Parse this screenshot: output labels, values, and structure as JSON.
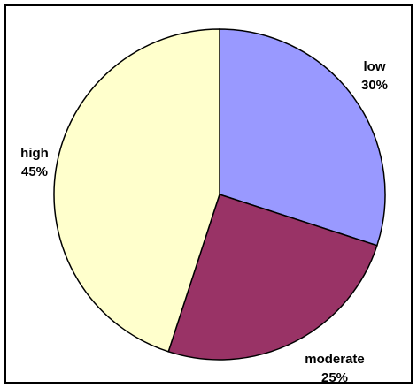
{
  "chart_data": {
    "type": "pie",
    "categories": [
      "low",
      "moderate",
      "high"
    ],
    "values": [
      30,
      25,
      45
    ],
    "value_labels": [
      "30%",
      "25%",
      "45%"
    ],
    "colors": [
      "#9999ff",
      "#993366",
      "#ffffcc"
    ],
    "start_angle_deg": 0,
    "direction": "clockwise",
    "legend": "none",
    "title": ""
  }
}
